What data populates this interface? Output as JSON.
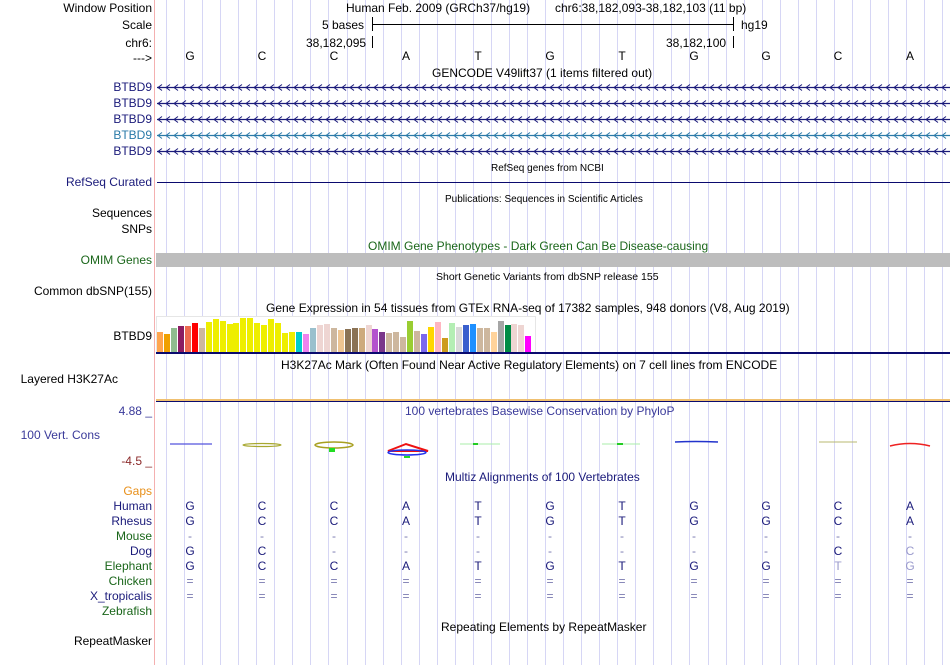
{
  "header": {
    "window_position_label": "Window Position",
    "scale_label": "Scale",
    "chrom_label": "chr6:",
    "strand_label": "--->",
    "assembly_text": "Human Feb. 2009 (GRCh37/hg19)",
    "position_text": "chr6:38,182,093-38,182,103 (11 bp)",
    "scale_text": "5 bases",
    "scale_db": "hg19",
    "coord_left": "38,182,095",
    "coord_right": "38,182,100"
  },
  "bases": [
    "G",
    "C",
    "C",
    "A",
    "T",
    "G",
    "T",
    "G",
    "G",
    "C",
    "A"
  ],
  "tracks": {
    "gencode": {
      "title": "GENCODE V49lift37 (1 items filtered out)",
      "items": [
        {
          "label": "BTBD9",
          "color": "#1a1a7a"
        },
        {
          "label": "BTBD9",
          "color": "#1a1a7a"
        },
        {
          "label": "BTBD9",
          "color": "#1a1a7a"
        },
        {
          "label": "BTBD9",
          "color": "#2a7aa8"
        },
        {
          "label": "BTBD9",
          "color": "#1a1a7a"
        }
      ]
    },
    "refseq": {
      "title": "RefSeq genes from NCBI",
      "label": "RefSeq Curated"
    },
    "publications": {
      "title": "Publications: Sequences in Scientific Articles",
      "label_sequences": "Sequences",
      "label_snps": "SNPs"
    },
    "omim": {
      "title": "OMIM Gene Phenotypes - Dark Green Can Be Disease-causing",
      "label": "OMIM Genes",
      "color": "#bdbdbd"
    },
    "dbsnp": {
      "title": "Short Genetic Variants from dbSNP release 155",
      "label": "Common dbSNP(155)"
    },
    "gtex": {
      "title": "Gene Expression in 54 tissues from GTEx RNA-seq of 17382 samples, 948 donors (V8, Aug 2019)",
      "label": "BTBD9",
      "bars": [
        {
          "v": 0.6,
          "c": "#ffa54f"
        },
        {
          "v": 0.52,
          "c": "#f0a000"
        },
        {
          "v": 0.72,
          "c": "#8fbc8f"
        },
        {
          "v": 0.76,
          "c": "#8b1c62"
        },
        {
          "v": 0.76,
          "c": "#ee6a50"
        },
        {
          "v": 0.86,
          "c": "#ff0000"
        },
        {
          "v": 0.7,
          "c": "#cdb79e"
        },
        {
          "v": 0.89,
          "c": "#eeee00"
        },
        {
          "v": 0.98,
          "c": "#eeee00"
        },
        {
          "v": 0.92,
          "c": "#eeee00"
        },
        {
          "v": 0.82,
          "c": "#eeee00"
        },
        {
          "v": 0.85,
          "c": "#eeee00"
        },
        {
          "v": 1.0,
          "c": "#eeee00"
        },
        {
          "v": 1.0,
          "c": "#eeee00"
        },
        {
          "v": 0.84,
          "c": "#eeee00"
        },
        {
          "v": 0.8,
          "c": "#eeee00"
        },
        {
          "v": 0.98,
          "c": "#eeee00"
        },
        {
          "v": 0.84,
          "c": "#eeee00"
        },
        {
          "v": 0.55,
          "c": "#eeee00"
        },
        {
          "v": 0.58,
          "c": "#eeee00"
        },
        {
          "v": 0.58,
          "c": "#00cdcd"
        },
        {
          "v": 0.52,
          "c": "#ee82ee"
        },
        {
          "v": 0.7,
          "c": "#9ac0cd"
        },
        {
          "v": 0.78,
          "c": "#eed5d2"
        },
        {
          "v": 0.82,
          "c": "#eed5d2"
        },
        {
          "v": 0.7,
          "c": "#cdb79e"
        },
        {
          "v": 0.66,
          "c": "#eec591"
        },
        {
          "v": 0.68,
          "c": "#8b7355"
        },
        {
          "v": 0.72,
          "c": "#8b7355"
        },
        {
          "v": 0.7,
          "c": "#cdaa7d"
        },
        {
          "v": 0.78,
          "c": "#eed5d2"
        },
        {
          "v": 0.68,
          "c": "#b452cd"
        },
        {
          "v": 0.58,
          "c": "#7a378b"
        },
        {
          "v": 0.56,
          "c": "#cdb79e"
        },
        {
          "v": 0.6,
          "c": "#cdb79e"
        },
        {
          "v": 0.44,
          "c": "#cdb79e"
        },
        {
          "v": 0.9,
          "c": "#9acd32"
        },
        {
          "v": 0.62,
          "c": "#cdb79e"
        },
        {
          "v": 0.52,
          "c": "#7b68ee"
        },
        {
          "v": 0.74,
          "c": "#ffd700"
        },
        {
          "v": 0.88,
          "c": "#ffb6c1"
        },
        {
          "v": 0.42,
          "c": "#cd9b1d"
        },
        {
          "v": 0.84,
          "c": "#b4eeb4"
        },
        {
          "v": 0.74,
          "c": "#d9d9d9"
        },
        {
          "v": 0.78,
          "c": "#3a5fcd"
        },
        {
          "v": 0.82,
          "c": "#1e90ff"
        },
        {
          "v": 0.72,
          "c": "#cdb79e"
        },
        {
          "v": 0.7,
          "c": "#cdb79e"
        },
        {
          "v": 0.6,
          "c": "#ffd39b"
        },
        {
          "v": 0.9,
          "c": "#a6a6a6"
        },
        {
          "v": 0.78,
          "c": "#008b45"
        },
        {
          "v": 0.82,
          "c": "#eed5d2"
        },
        {
          "v": 0.78,
          "c": "#eed5d2"
        },
        {
          "v": 0.46,
          "c": "#ff00ff"
        }
      ]
    },
    "h3k27ac": {
      "title": "H3K27Ac Mark (Often Found Near Active Regulatory Elements) on 7 cell lines from ENCODE",
      "label": "Layered H3K27Ac"
    },
    "phylop": {
      "title": "100 vertebrates Basewise Conservation by PhyloP",
      "label": "100 Vert. Cons",
      "max": "4.88 _",
      "min": "-4.5 _"
    },
    "multiz": {
      "title": "Multiz Alignments of 100 Vertebrates",
      "gaps_label": "Gaps",
      "species": [
        {
          "name": "Human",
          "color": "#1a1a7a",
          "bases": [
            "G",
            "C",
            "C",
            "A",
            "T",
            "G",
            "T",
            "G",
            "G",
            "C",
            "A"
          ]
        },
        {
          "name": "Rhesus",
          "color": "#1a1a7a",
          "bases": [
            "G",
            "C",
            "C",
            "A",
            "T",
            "G",
            "T",
            "G",
            "G",
            "C",
            "A"
          ]
        },
        {
          "name": "Mouse",
          "color": "#1a661a",
          "bases": [
            "-",
            "-",
            "-",
            "-",
            "-",
            "-",
            "-",
            "-",
            "-",
            "-",
            "-"
          ]
        },
        {
          "name": "Dog",
          "color": "#1a1a7a",
          "bases": [
            "G",
            "C",
            "-",
            "-",
            "-",
            "-",
            "-",
            "-",
            "-",
            "C",
            "C"
          ]
        },
        {
          "name": "Elephant",
          "color": "#1a661a",
          "bases": [
            "G",
            "C",
            "C",
            "A",
            "T",
            "G",
            "T",
            "G",
            "G",
            "T",
            "G"
          ]
        },
        {
          "name": "Chicken",
          "color": "#1a661a",
          "bases": [
            "=",
            "=",
            "=",
            "=",
            "=",
            "=",
            "=",
            "=",
            "=",
            "=",
            "="
          ]
        },
        {
          "name": "X_tropicalis",
          "color": "#1a1a7a",
          "bases": [
            "=",
            "=",
            "=",
            "=",
            "=",
            "=",
            "=",
            "=",
            "=",
            "=",
            "="
          ]
        },
        {
          "name": "Zebrafish",
          "color": "#1a661a",
          "bases": [
            "",
            "",
            "",
            "",
            "",
            "",
            "",
            "",
            "",
            "",
            ""
          ]
        }
      ]
    },
    "repeatmasker": {
      "title": "Repeating Elements by RepeatMasker",
      "label": "RepeatMasker"
    }
  }
}
